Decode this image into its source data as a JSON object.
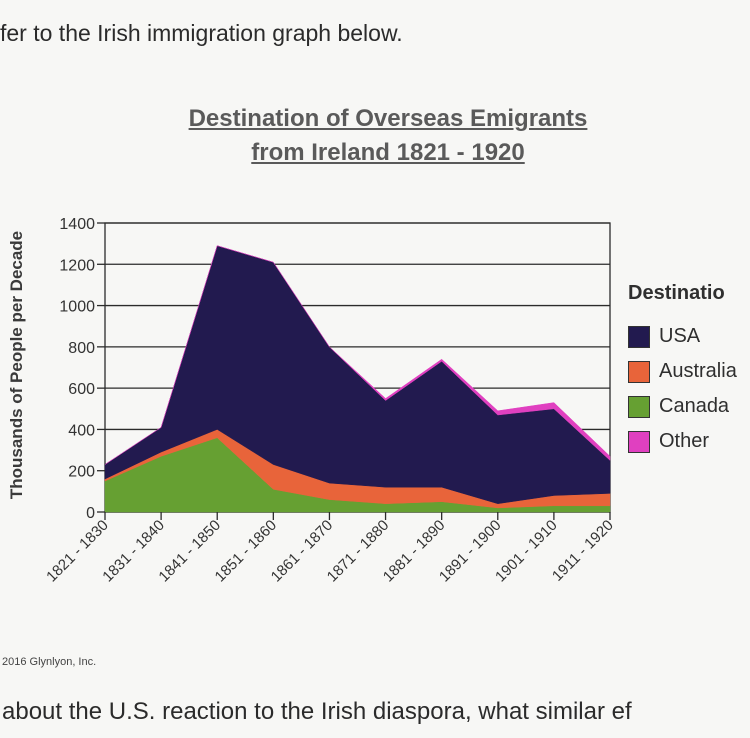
{
  "intro_text": "fer to the Irish immigration graph below.",
  "question_text": "about the U.S. reaction to the Irish diaspora, what similar ef",
  "copyright": "2016 Glynlyon, Inc.",
  "legend": {
    "title": "Destinatio",
    "items": [
      {
        "label": "USA",
        "color": "#221a4f"
      },
      {
        "label": "Australia",
        "color": "#e8643a"
      },
      {
        "label": "Canada",
        "color": "#66a032"
      },
      {
        "label": "Other",
        "color": "#e040c0"
      }
    ]
  },
  "chart_data": {
    "type": "area",
    "stacked": true,
    "title_line1": "Destination of Overseas Emigrants",
    "title_line2": "from Ireland 1821 - 1920",
    "ylabel": "Thousands of People per Decade",
    "xlabel": "",
    "ylim": [
      0,
      1400
    ],
    "yticks": [
      "0",
      "200",
      "400",
      "600",
      "800",
      "1000",
      "1200",
      "1400"
    ],
    "categories": [
      "1821 - 1830",
      "1831 - 1840",
      "1841 - 1850",
      "1851 - 1860",
      "1861 - 1870",
      "1871 - 1880",
      "1881 - 1890",
      "1891 - 1900",
      "1901 - 1910",
      "1911 - 1920"
    ],
    "grid": true,
    "series": [
      {
        "name": "Canada",
        "color": "#66a032",
        "values": [
          150,
          270,
          360,
          110,
          60,
          40,
          50,
          20,
          30,
          30
        ]
      },
      {
        "name": "Australia",
        "color": "#e8643a",
        "values": [
          10,
          20,
          40,
          120,
          80,
          80,
          70,
          20,
          50,
          60
        ]
      },
      {
        "name": "USA",
        "color": "#221a4f",
        "values": [
          70,
          120,
          890,
          980,
          660,
          420,
          610,
          430,
          420,
          160
        ]
      },
      {
        "name": "Other",
        "color": "#e040c0",
        "values": [
          0,
          0,
          0,
          0,
          0,
          10,
          10,
          20,
          30,
          20
        ]
      }
    ]
  }
}
